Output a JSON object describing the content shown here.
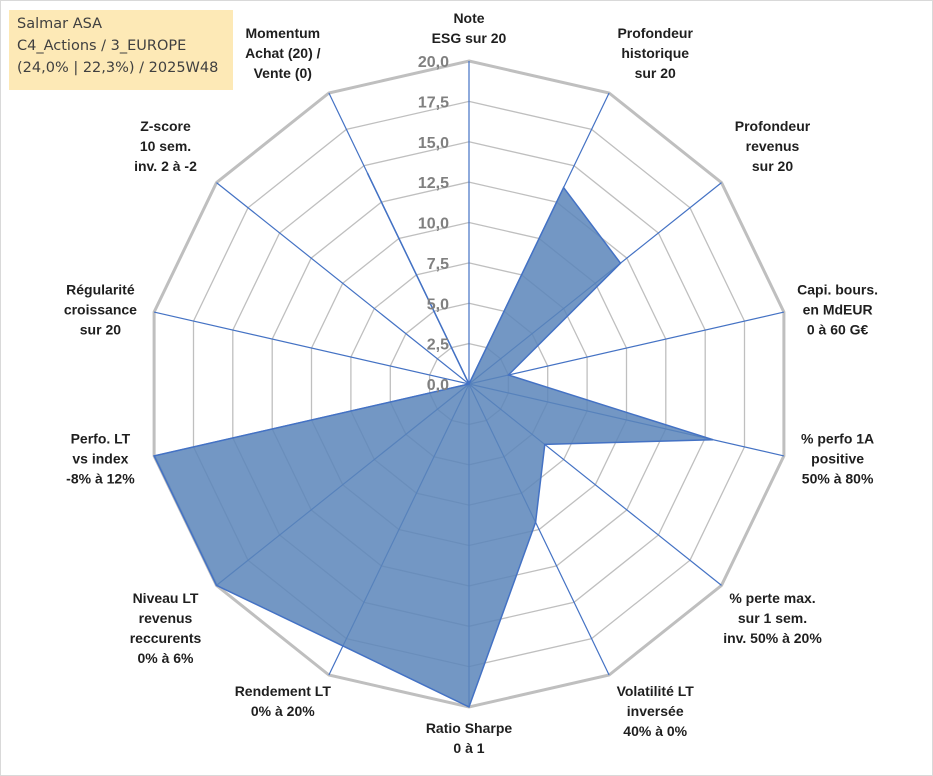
{
  "title_box": {
    "line1": "Salmar ASA",
    "line2": "C4_Actions / 3_EUROPE",
    "line3": "(24,0% | 22,3%) / 2025W48"
  },
  "chart_data": {
    "type": "radar",
    "r_range": [
      0,
      20
    ],
    "r_ticks": [
      "0,0",
      "2,5",
      "5,0",
      "7,5",
      "10,0",
      "12,5",
      "15,0",
      "17,5",
      "20,0"
    ],
    "grid": true,
    "axes": [
      [
        "Note",
        "ESG sur 20"
      ],
      [
        "Profondeur",
        "historique",
        "sur 20"
      ],
      [
        "Profondeur",
        "revenus",
        "sur 20"
      ],
      [
        "Capi. bours.",
        "en MdEUR",
        "0 à 60 G€"
      ],
      [
        "% perfo 1A",
        "positive",
        "50% à 80%"
      ],
      [
        "% perte max.",
        "sur 1 sem.",
        "inv. 50% à 20%"
      ],
      [
        "Volatilité LT",
        "inversée",
        "40% à 0%"
      ],
      [
        "Ratio Sharpe",
        "0 à 1"
      ],
      [
        "Rendement LT",
        "0% à 20%"
      ],
      [
        "Niveau LT",
        "revenus",
        "reccurents",
        "0% à 6%"
      ],
      [
        "Perfo. LT",
        "vs index",
        "-8% à 12%"
      ],
      [
        "Régularité",
        "croissance",
        "sur 20"
      ],
      [
        "Z-score",
        "10 sem.",
        "inv. 2 à -2"
      ],
      [
        "Momentum",
        "Achat (20) /",
        "Vente (0)"
      ]
    ],
    "values": [
      0,
      13.5,
      12,
      2.5,
      15.5,
      6,
      9.5,
      20,
      18,
      20,
      20,
      0,
      0,
      14.5
    ],
    "colors": {
      "fill": "#5b85ba",
      "stroke": "#4472c4",
      "grid": "#bfbfbf",
      "spoke": "#4472c4"
    }
  }
}
